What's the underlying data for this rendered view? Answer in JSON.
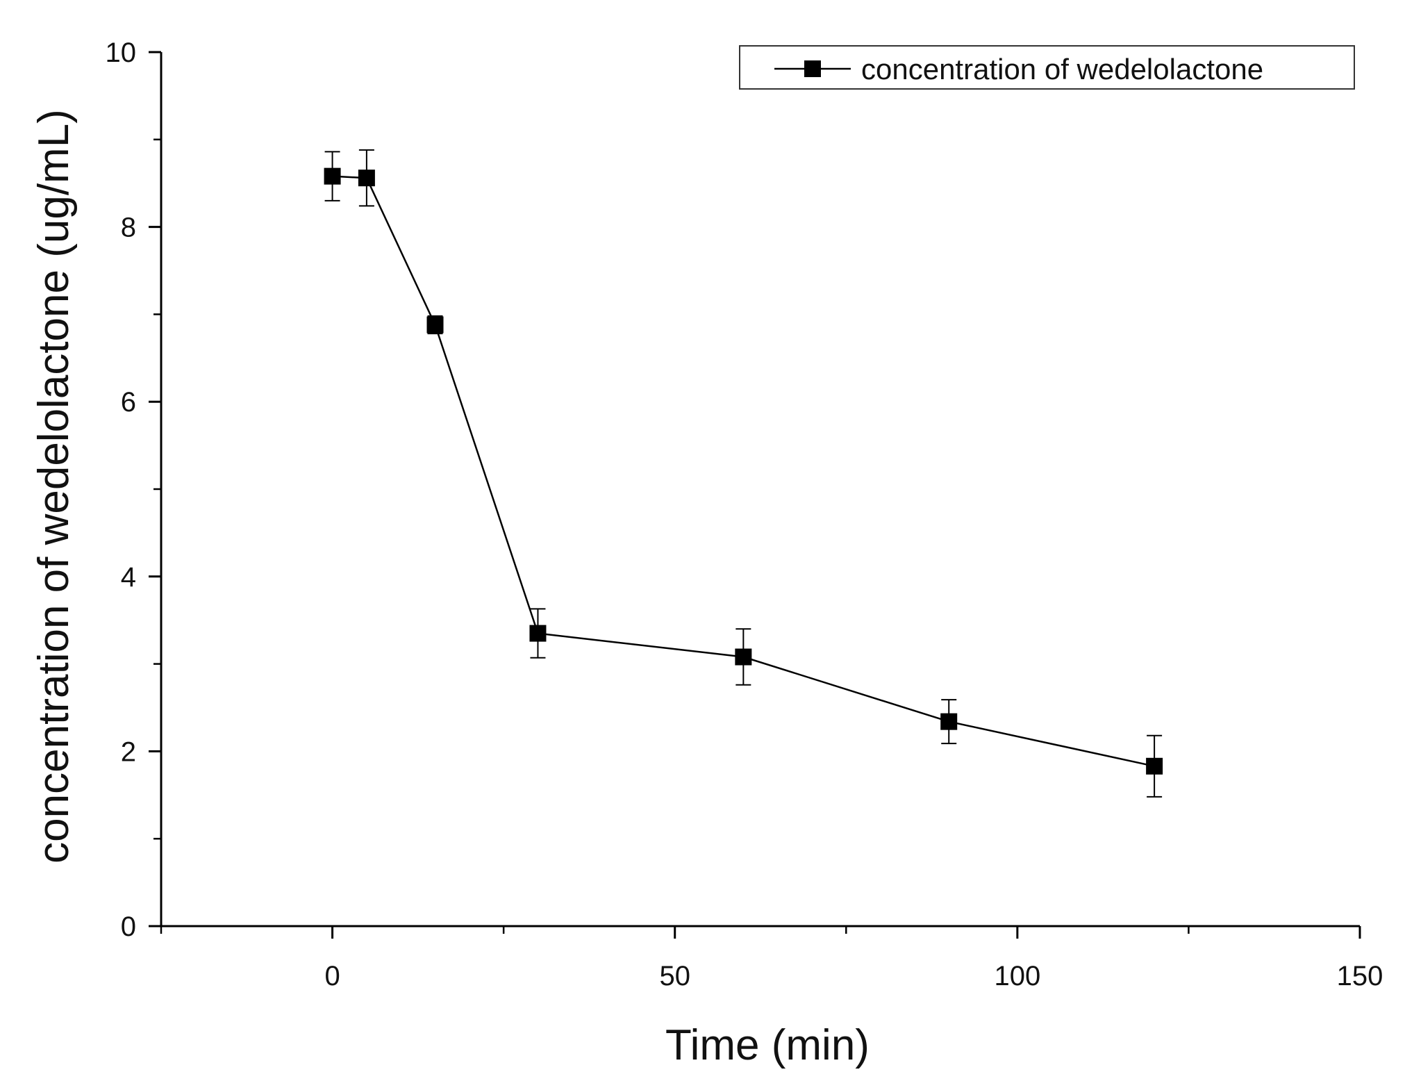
{
  "chart_data": {
    "type": "line",
    "title": "",
    "xlabel": "Time (min)",
    "ylabel": "concentration of wedelolactone (ug/mL)",
    "xlim": [
      -25,
      150
    ],
    "ylim": [
      0,
      10
    ],
    "xticks": [
      0,
      50,
      100,
      150
    ],
    "xticks_minor": [
      -25,
      25,
      75,
      125
    ],
    "yticks": [
      0,
      2,
      4,
      6,
      8,
      10
    ],
    "yticks_minor": [
      1,
      3,
      5,
      7,
      9
    ],
    "xtick_labels": [
      "0",
      "50",
      "100",
      "150"
    ],
    "ytick_labels": [
      "0",
      "2",
      "4",
      "6",
      "8",
      "10"
    ],
    "grid": false,
    "legend_position": "top-right",
    "series": [
      {
        "name": "concentration of wedelolactone",
        "x": [
          0,
          5,
          15,
          30,
          60,
          90,
          120
        ],
        "y": [
          8.58,
          8.56,
          6.88,
          3.35,
          3.08,
          2.34,
          1.83
        ],
        "error": [
          0.28,
          0.32,
          0.1,
          0.28,
          0.32,
          0.25,
          0.35
        ],
        "marker": "square",
        "color": "#000000"
      }
    ]
  }
}
